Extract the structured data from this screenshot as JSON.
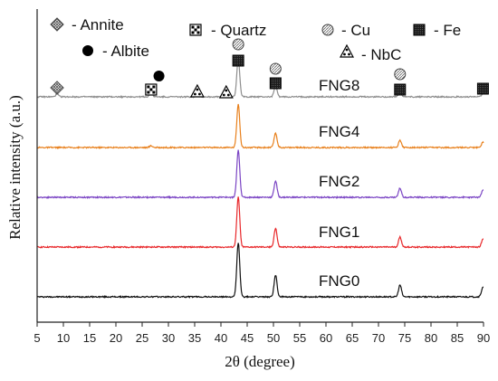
{
  "chart_data": {
    "type": "line",
    "title": "",
    "xlabel": "2θ (degree)",
    "ylabel": "Relative intensity (a.u.)",
    "xlim": [
      5,
      90
    ],
    "xticks": [
      5,
      10,
      15,
      20,
      25,
      30,
      35,
      40,
      45,
      50,
      55,
      60,
      65,
      70,
      75,
      80,
      85,
      90
    ],
    "grid": false,
    "legend_placement": "top",
    "legend": [
      {
        "symbol": "annite",
        "label": "- Annite"
      },
      {
        "symbol": "albite",
        "label": "- Albite"
      },
      {
        "symbol": "quartz",
        "label": "- Quartz"
      },
      {
        "symbol": "cu",
        "label": "- Cu"
      },
      {
        "symbol": "nbc",
        "label": "- NbC"
      },
      {
        "symbol": "fe",
        "label": "- Fe"
      }
    ],
    "series": [
      {
        "name": "FNG0",
        "color": "#111111",
        "peaks": [
          [
            43.3,
            60
          ],
          [
            50.4,
            24
          ],
          [
            74.1,
            13
          ],
          [
            89.9,
            11
          ]
        ]
      },
      {
        "name": "FNG1",
        "color": "#e8282b",
        "peaks": [
          [
            43.3,
            55
          ],
          [
            50.4,
            21
          ],
          [
            74.1,
            11
          ],
          [
            89.9,
            9
          ]
        ]
      },
      {
        "name": "FNG2",
        "color": "#7b45c4",
        "peaks": [
          [
            43.3,
            52
          ],
          [
            50.4,
            18
          ],
          [
            74.1,
            10
          ],
          [
            89.9,
            8
          ]
        ]
      },
      {
        "name": "FNG4",
        "color": "#e8801c",
        "peaks": [
          [
            26.7,
            2
          ],
          [
            43.3,
            48
          ],
          [
            50.4,
            16
          ],
          [
            74.1,
            8
          ],
          [
            89.9,
            6
          ]
        ]
      },
      {
        "name": "FNG8",
        "color": "#8e8e8e",
        "peaks": [
          [
            8.8,
            3
          ],
          [
            26.7,
            5
          ],
          [
            35.5,
            2
          ],
          [
            41.0,
            3
          ],
          [
            43.3,
            42
          ],
          [
            50.4,
            12
          ],
          [
            74.1,
            5
          ],
          [
            89.9,
            4
          ]
        ]
      }
    ],
    "phase_markers": [
      {
        "symbol": "annite",
        "x": 8.8
      },
      {
        "symbol": "albite",
        "x": 28.2
      },
      {
        "symbol": "quartz",
        "x": 26.7
      },
      {
        "symbol": "nbc",
        "x": 35.5
      },
      {
        "symbol": "nbc",
        "x": 41.0
      },
      {
        "symbol": "cu",
        "x": 43.3
      },
      {
        "symbol": "fe",
        "x": 43.3
      },
      {
        "symbol": "cu",
        "x": 50.4
      },
      {
        "symbol": "fe",
        "x": 50.4
      },
      {
        "symbol": "cu",
        "x": 74.1
      },
      {
        "symbol": "fe",
        "x": 74.1
      },
      {
        "symbol": "fe",
        "x": 89.9
      }
    ]
  }
}
